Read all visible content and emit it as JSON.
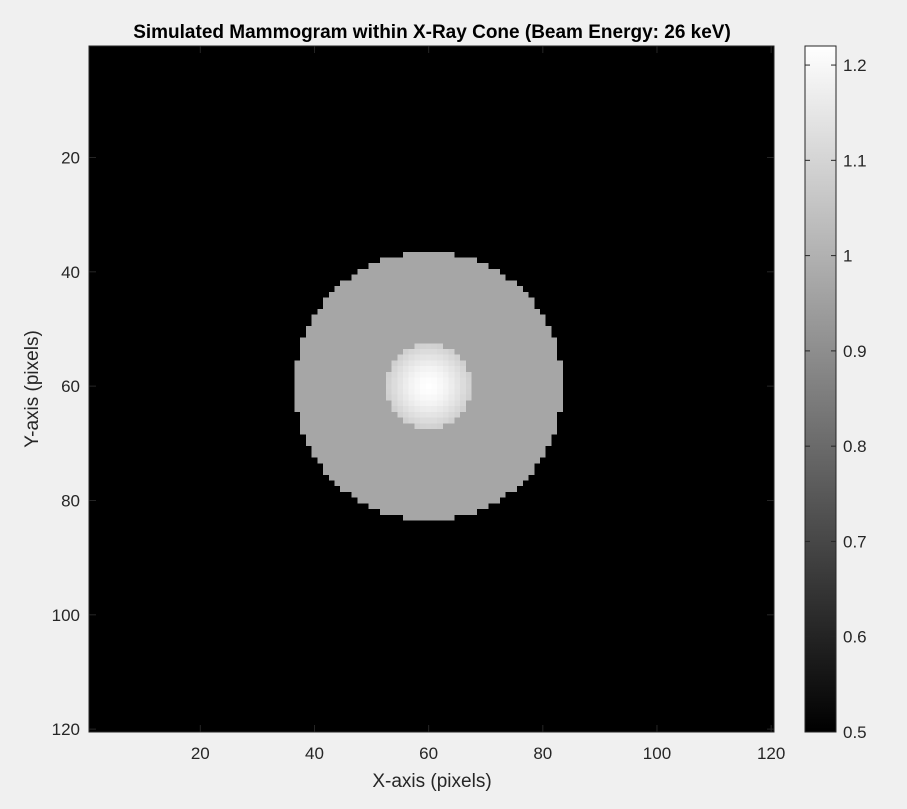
{
  "chart_data": {
    "type": "heatmap",
    "title": "Simulated Mammogram within X-Ray Cone (Beam Energy: 26 keV)",
    "xlabel": "X-axis (pixels)",
    "ylabel": "Y-axis (pixels)",
    "xlim": [
      0.5,
      120.5
    ],
    "ylim": [
      0.5,
      120.5
    ],
    "y_direction": "reverse",
    "x_ticks": [
      20,
      40,
      60,
      80,
      100,
      120
    ],
    "y_ticks": [
      20,
      40,
      60,
      80,
      100,
      120
    ],
    "colormap": "gray",
    "colorbar": {
      "clim": [
        0.5,
        1.22
      ],
      "ticks": [
        0.5,
        0.6,
        0.7,
        0.8,
        0.9,
        1,
        1.1,
        1.2
      ],
      "tick_labels": [
        "0.5",
        "0.6",
        "0.7",
        "0.8",
        "0.9",
        "1",
        "1.1",
        "1.2"
      ]
    },
    "grid_size": [
      120,
      120
    ],
    "background_value": 0.5,
    "regions": [
      {
        "shape": "disk",
        "center": [
          60,
          60
        ],
        "radius": 23.5,
        "value": 0.97
      },
      {
        "shape": "disk",
        "center": [
          60,
          60
        ],
        "radius": 7.5,
        "value_center": 1.22,
        "value_edge": 1.08
      }
    ],
    "grid": false
  }
}
